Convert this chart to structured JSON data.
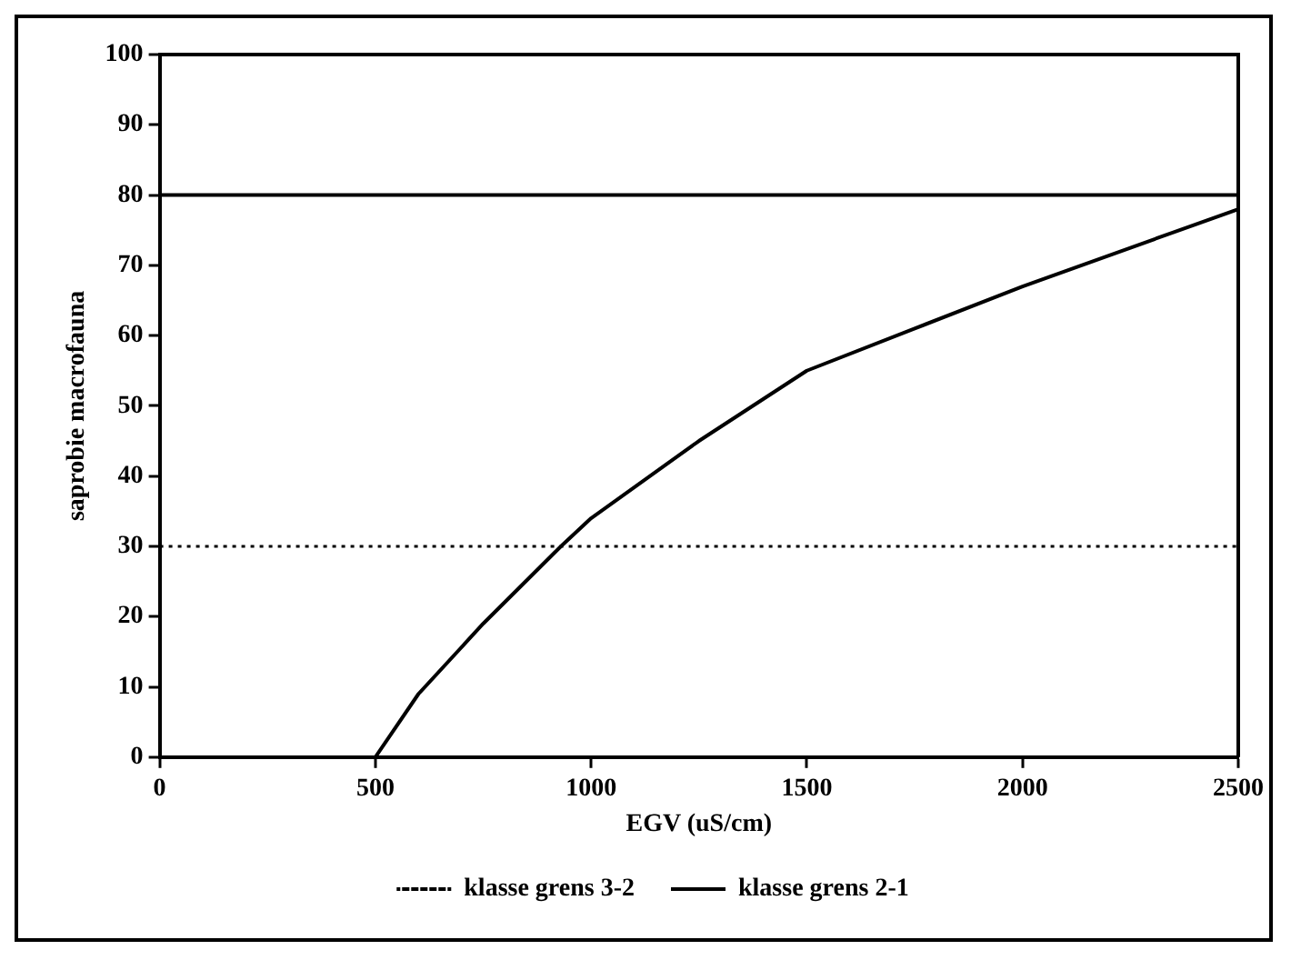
{
  "chart_data": {
    "type": "line",
    "xlabel": "EGV (uS/cm)",
    "ylabel": "saprobie macrofauna",
    "xlim": [
      0,
      2500
    ],
    "xticks": [
      0,
      500,
      1000,
      1500,
      2000,
      2500
    ],
    "ylim": [
      0,
      100
    ],
    "yticks": [
      0,
      10,
      20,
      30,
      40,
      50,
      60,
      70,
      80,
      90,
      100
    ],
    "grid": false,
    "legend": "bottom",
    "marker": "none",
    "series": [
      {
        "name": "klasse grens 3-2",
        "color": "#000000",
        "line_style": "dotted",
        "x": [
          0,
          2500
        ],
        "values": [
          30,
          30
        ]
      },
      {
        "name": "klasse grens 2-1",
        "color": "#000000",
        "line_style": "solid",
        "x": [
          0,
          2500
        ],
        "values": [
          80,
          80
        ]
      },
      {
        "color": "#000000",
        "line_style": "solid",
        "x": [
          500,
          600,
          750,
          930,
          1000,
          1250,
          1500,
          1750,
          2000,
          2250,
          2500
        ],
        "values": [
          0,
          9,
          19,
          30,
          34,
          45,
          55,
          61,
          67,
          72.5,
          78
        ]
      }
    ]
  }
}
